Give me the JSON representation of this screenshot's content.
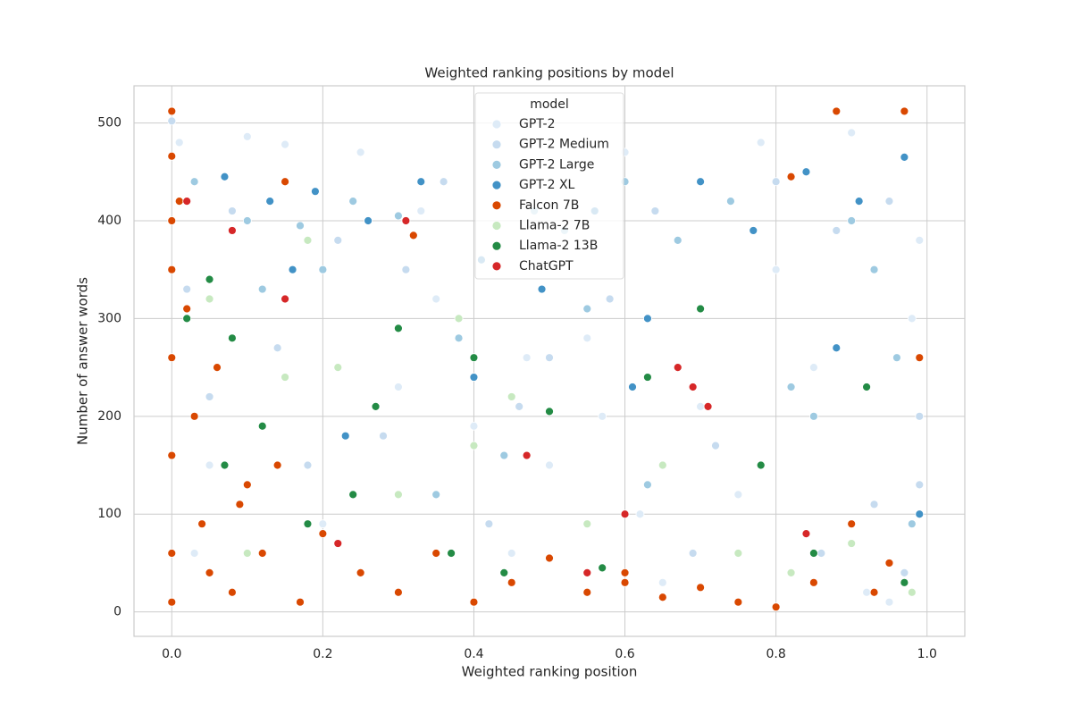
{
  "chart_data": {
    "type": "scatter",
    "title": "Weighted ranking positions by model",
    "x_label": "Weighted ranking position",
    "y_label": "Number of answer words",
    "xlim": [
      -0.05,
      1.05
    ],
    "ylim": [
      -25,
      538
    ],
    "xticks": [
      {
        "value": 0,
        "label": "0.0"
      },
      {
        "value": 0.2,
        "label": "0.2"
      },
      {
        "value": 0.4,
        "label": "0.4"
      },
      {
        "value": 0.6,
        "label": "0.6"
      },
      {
        "value": 0.8,
        "label": "0.8"
      },
      {
        "value": 1,
        "label": "1.0"
      }
    ],
    "yticks": [
      0,
      100,
      200,
      300,
      400,
      500
    ],
    "grid": true,
    "legend_title": "model",
    "legend_position": "upper center",
    "series": [
      {
        "name": "GPT-2",
        "color": "#deebf7",
        "x": [
          0.01,
          0.05,
          0.1,
          0.15,
          0.2,
          0.25,
          0.3,
          0.35,
          0.4,
          0.45,
          0.5,
          0.55,
          0.6,
          0.65,
          0.7,
          0.75,
          0.8,
          0.85,
          0.9,
          0.95,
          0.98,
          0.12,
          0.33,
          0.47,
          0.62,
          0.78,
          0.92,
          0.99,
          0.03,
          0.57
        ],
        "values": [
          480,
          150,
          486,
          478,
          90,
          470,
          230,
          320,
          190,
          60,
          150,
          280,
          470,
          30,
          210,
          120,
          350,
          250,
          490,
          10,
          300,
          60,
          410,
          260,
          100,
          480,
          20,
          380,
          60,
          200
        ]
      },
      {
        "name": "GPT-2 Medium",
        "color": "#c6dbef",
        "x": [
          0.0,
          0.02,
          0.08,
          0.14,
          0.22,
          0.28,
          0.36,
          0.42,
          0.5,
          0.58,
          0.64,
          0.72,
          0.8,
          0.86,
          0.93,
          0.97,
          0.99,
          0.18,
          0.31,
          0.46,
          0.69,
          0.88,
          0.95,
          0.99,
          0.05
        ],
        "values": [
          502,
          330,
          410,
          270,
          380,
          180,
          440,
          90,
          260,
          320,
          410,
          170,
          440,
          60,
          110,
          40,
          200,
          150,
          350,
          210,
          60,
          390,
          420,
          130,
          220
        ]
      },
      {
        "name": "GPT-2 Large",
        "color": "#9ecae1",
        "x": [
          0.03,
          0.1,
          0.17,
          0.24,
          0.3,
          0.38,
          0.44,
          0.52,
          0.6,
          0.67,
          0.74,
          0.82,
          0.9,
          0.96,
          0.2,
          0.35,
          0.55,
          0.7,
          0.85,
          0.98,
          0.12,
          0.48,
          0.63,
          0.93
        ],
        "values": [
          440,
          400,
          395,
          420,
          405,
          280,
          160,
          390,
          440,
          380,
          420,
          230,
          400,
          260,
          350,
          120,
          310,
          440,
          200,
          90,
          330,
          410,
          130,
          350
        ]
      },
      {
        "name": "GPT-2 XL",
        "color": "#4292c6",
        "x": [
          0.07,
          0.13,
          0.19,
          0.26,
          0.33,
          0.41,
          0.49,
          0.56,
          0.63,
          0.7,
          0.77,
          0.84,
          0.91,
          0.97,
          0.16,
          0.4,
          0.61,
          0.88,
          0.99,
          0.23
        ],
        "values": [
          445,
          420,
          430,
          400,
          440,
          360,
          330,
          410,
          300,
          440,
          390,
          450,
          420,
          465,
          350,
          240,
          230,
          270,
          100,
          180
        ]
      },
      {
        "name": "Falcon 7B",
        "color": "#d94801",
        "x": [
          0.0,
          0.0,
          0.0,
          0.0,
          0.0,
          0.0,
          0.0,
          0.01,
          0.02,
          0.03,
          0.04,
          0.05,
          0.06,
          0.08,
          0.1,
          0.12,
          0.14,
          0.17,
          0.2,
          0.25,
          0.3,
          0.35,
          0.4,
          0.45,
          0.5,
          0.55,
          0.6,
          0.65,
          0.7,
          0.75,
          0.8,
          0.85,
          0.88,
          0.9,
          0.93,
          0.95,
          0.97,
          0.99,
          0.0,
          0.15,
          0.32,
          0.09,
          0.6,
          0.82
        ],
        "values": [
          512,
          466,
          400,
          350,
          260,
          160,
          60,
          420,
          310,
          200,
          90,
          40,
          250,
          20,
          130,
          60,
          150,
          10,
          80,
          40,
          20,
          60,
          10,
          30,
          55,
          20,
          40,
          15,
          25,
          10,
          5,
          30,
          512,
          90,
          20,
          50,
          512,
          260,
          10,
          440,
          385,
          110,
          30,
          445
        ]
      },
      {
        "name": "Llama-2 7B",
        "color": "#c7e9c0",
        "x": [
          0.05,
          0.1,
          0.18,
          0.22,
          0.3,
          0.38,
          0.45,
          0.55,
          0.65,
          0.75,
          0.82,
          0.9,
          0.15,
          0.4,
          0.98
        ],
        "values": [
          320,
          60,
          380,
          250,
          120,
          300,
          220,
          90,
          150,
          60,
          40,
          70,
          240,
          170,
          20
        ]
      },
      {
        "name": "Llama-2 13B",
        "color": "#238b45",
        "x": [
          0.02,
          0.05,
          0.08,
          0.12,
          0.18,
          0.24,
          0.3,
          0.37,
          0.44,
          0.5,
          0.57,
          0.63,
          0.7,
          0.78,
          0.85,
          0.92,
          0.97,
          0.27,
          0.4,
          0.07
        ],
        "values": [
          300,
          340,
          280,
          190,
          90,
          120,
          290,
          60,
          40,
          205,
          45,
          240,
          310,
          150,
          60,
          230,
          30,
          210,
          260,
          150
        ]
      },
      {
        "name": "ChatGPT",
        "color": "#d62728",
        "x": [
          0.02,
          0.08,
          0.15,
          0.22,
          0.31,
          0.47,
          0.6,
          0.67,
          0.69,
          0.71,
          0.55,
          0.84
        ],
        "values": [
          420,
          390,
          320,
          70,
          400,
          160,
          100,
          250,
          230,
          210,
          40,
          80
        ]
      }
    ]
  }
}
